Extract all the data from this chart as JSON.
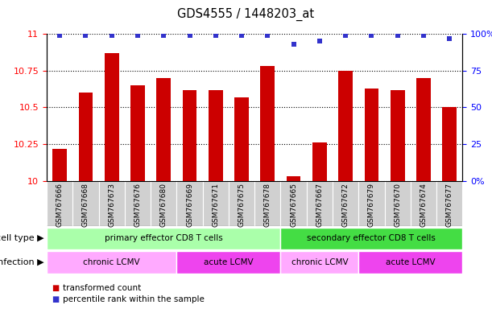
{
  "title": "GDS4555 / 1448203_at",
  "samples": [
    "GSM767666",
    "GSM767668",
    "GSM767673",
    "GSM767676",
    "GSM767680",
    "GSM767669",
    "GSM767671",
    "GSM767675",
    "GSM767678",
    "GSM767665",
    "GSM767667",
    "GSM767672",
    "GSM767679",
    "GSM767670",
    "GSM767674",
    "GSM767677"
  ],
  "transformed_count": [
    10.22,
    10.6,
    10.87,
    10.65,
    10.7,
    10.62,
    10.62,
    10.57,
    10.78,
    10.03,
    10.26,
    10.75,
    10.63,
    10.62,
    10.7,
    10.5
  ],
  "percentile_rank": [
    99,
    99,
    99,
    99,
    99,
    99,
    99,
    99,
    99,
    93,
    95,
    99,
    99,
    99,
    99,
    97
  ],
  "ylim_left": [
    10.0,
    11.0
  ],
  "ylim_right": [
    0,
    100
  ],
  "yticks_left": [
    10.0,
    10.25,
    10.5,
    10.75,
    11.0
  ],
  "yticks_right": [
    0,
    25,
    50,
    75,
    100
  ],
  "bar_color": "#cc0000",
  "dot_color": "#3333cc",
  "background_color": "#ffffff",
  "cell_type_groups": [
    {
      "label": "primary effector CD8 T cells",
      "start": 0,
      "end": 8,
      "color": "#aaffaa"
    },
    {
      "label": "secondary effector CD8 T cells",
      "start": 9,
      "end": 15,
      "color": "#44dd44"
    }
  ],
  "infection_groups": [
    {
      "label": "chronic LCMV",
      "start": 0,
      "end": 4,
      "color": "#ffaaff"
    },
    {
      "label": "acute LCMV",
      "start": 5,
      "end": 8,
      "color": "#ee44ee"
    },
    {
      "label": "chronic LCMV",
      "start": 9,
      "end": 11,
      "color": "#ffaaff"
    },
    {
      "label": "acute LCMV",
      "start": 12,
      "end": 15,
      "color": "#ee44ee"
    }
  ],
  "legend_red_label": "transformed count",
  "legend_blue_label": "percentile rank within the sample",
  "label_left": "cell type",
  "label_left2": "infection"
}
